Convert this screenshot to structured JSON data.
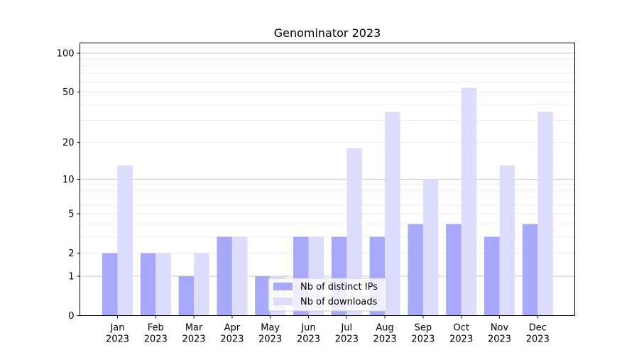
{
  "chart_data": {
    "type": "bar",
    "title": "Genominator 2023",
    "xlabel": "",
    "ylabel": "",
    "yscale": "log(1+y)",
    "ylim": [
      0,
      120
    ],
    "yticks": [
      "0",
      "1",
      "2",
      "5",
      "10",
      "20",
      "50",
      "100"
    ],
    "categories": [
      "Jan\n2023",
      "Feb\n2023",
      "Mar\n2023",
      "Apr\n2023",
      "May\n2023",
      "Jun\n2023",
      "Jul\n2023",
      "Aug\n2023",
      "Sep\n2023",
      "Oct\n2023",
      "Nov\n2023",
      "Dec\n2023"
    ],
    "series": [
      {
        "name": "Nb of distinct IPs",
        "color": "#a8a8fb",
        "values": [
          2,
          2,
          1,
          3,
          1,
          3,
          3,
          3,
          4,
          4,
          3,
          4
        ]
      },
      {
        "name": "Nb of downloads",
        "color": "#dcdcfd",
        "values": [
          13,
          2,
          2,
          3,
          1,
          3,
          18,
          35,
          10,
          54,
          13,
          35
        ]
      }
    ],
    "grid": true,
    "legend_position": "lower-center"
  }
}
